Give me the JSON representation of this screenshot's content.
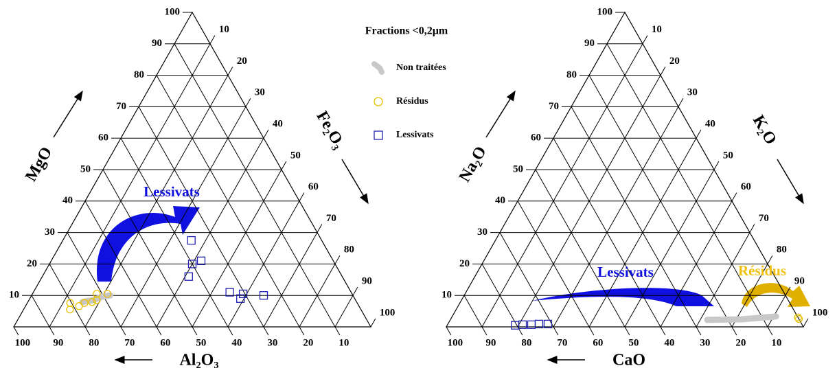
{
  "chart_data": [
    {
      "type": "ternary",
      "axes": {
        "top": {
          "label": "MgO",
          "ticks": [
            10,
            20,
            30,
            40,
            50,
            60,
            70,
            80,
            90,
            100
          ]
        },
        "right": {
          "label": "Fe₂O₃",
          "ticks": [
            10,
            20,
            30,
            40,
            50,
            60,
            70,
            80,
            90,
            100
          ]
        },
        "bottom": {
          "label": "Al₂O₃",
          "ticks": [
            100,
            90,
            80,
            70,
            60,
            50,
            40,
            30,
            20,
            10
          ]
        }
      },
      "legend": {
        "title": "Fractions <0,2µm"
      },
      "series": [
        {
          "name": "Non traitées",
          "color": "#c8c8c8",
          "marker": "blob",
          "top": [
            7.9,
            8.5,
            9.6,
            10
          ],
          "right": [
            15.3,
            17.9,
            20,
            22
          ]
        },
        {
          "name": "Résidus",
          "color": "#e8c000",
          "marker": "circle",
          "top": [
            5.5,
            7.6,
            6.6,
            7.6,
            7.9,
            10.5,
            10.5,
            8.5
          ],
          "right": [
            13,
            12,
            15,
            16,
            18,
            18,
            21,
            19
          ]
        },
        {
          "name": "Lessivats",
          "color": "#2020b0",
          "marker": "square",
          "top": [
            27.5,
            20,
            21,
            16,
            11,
            10.5,
            9,
            10
          ],
          "right": [
            36,
            40,
            42,
            41,
            55,
            59,
            59,
            65
          ]
        }
      ],
      "annotations": [
        {
          "text": "Lessivats",
          "color": "#1010e0"
        }
      ]
    },
    {
      "type": "ternary",
      "axes": {
        "top": {
          "label": "Na₂O",
          "ticks": [
            10,
            20,
            30,
            40,
            50,
            60,
            70,
            80,
            90,
            100
          ]
        },
        "right": {
          "label": "K₂O",
          "ticks": [
            10,
            20,
            30,
            40,
            50,
            60,
            70,
            80,
            90,
            100
          ]
        },
        "bottom": {
          "label": "CaO",
          "ticks": [
            100,
            90,
            80,
            70,
            60,
            50,
            40,
            30,
            20,
            10
          ]
        }
      },
      "series": [
        {
          "color": "#c8c8c8",
          "marker": "blob",
          "top": [
            2.2,
            2.4,
            3.3
          ],
          "right": [
            72,
            81.5,
            90.7
          ]
        },
        {
          "color": "#e8c000",
          "marker": "circle",
          "top": [
            3,
            2.5
          ],
          "right": [
            97,
            97.5
          ]
        },
        {
          "color": "#2020b0",
          "marker": "square",
          "top": [
            0.5,
            0.7,
            0.7,
            0.9,
            0.9
          ],
          "right": [
            19,
            21,
            23.5,
            25.5,
            28
          ]
        }
      ],
      "annotations": [
        {
          "text": "Lessivats",
          "color": "#1010e0"
        },
        {
          "text": "Résidus",
          "color": "#f0c010"
        }
      ]
    }
  ]
}
